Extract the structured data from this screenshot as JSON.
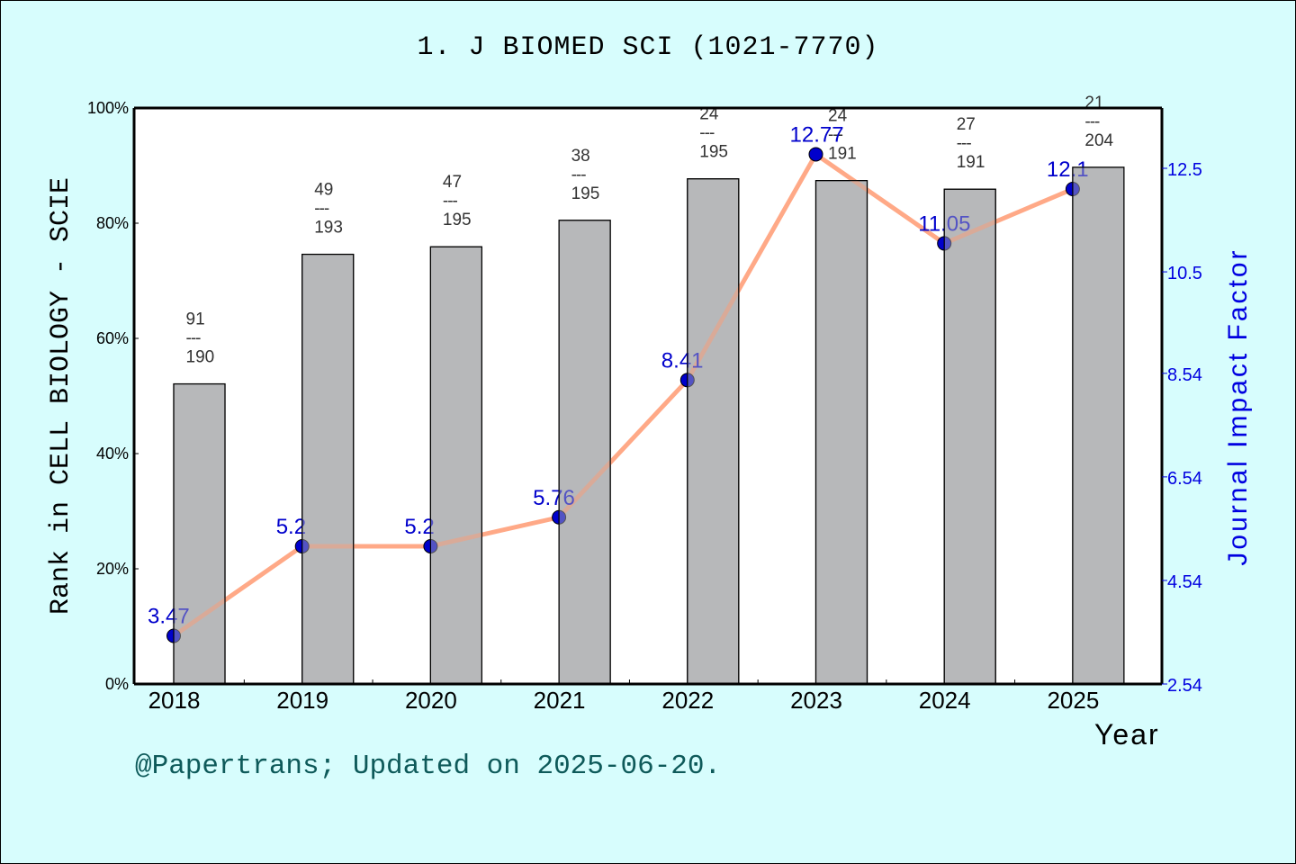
{
  "header": {
    "title": "1. J BIOMED SCI (1021-7770)"
  },
  "axes": {
    "left_title": "Rank in CELL BIOLOGY - SCIE",
    "right_title": "Journal Impact Factor",
    "x_title": "Year",
    "left_ticks": [
      "0%",
      "20%",
      "40%",
      "60%",
      "80%",
      "100%"
    ],
    "right_ticks": [
      "2.54",
      "4.54",
      "6.54",
      "8.54",
      "10.5",
      "12.5"
    ]
  },
  "footer": {
    "text": "@Papertrans; Updated on 2025-06-20."
  },
  "colors": {
    "background": "#d7fdfd",
    "plot_bg": "#ffffff",
    "bar_fill": "#b7b8ba",
    "line": "#ff9a72",
    "marker": "#0000cc",
    "if_label": "#0000cc",
    "rank_label": "#333333",
    "footer": "#0e5a5a"
  },
  "chart_data": {
    "type": "bar+line",
    "title": "1. J BIOMED SCI (1021-7770)",
    "xlabel": "Year",
    "ylabel": "Rank in CELL BIOLOGY - SCIE",
    "ylabel_right": "Journal Impact Factor",
    "categories": [
      "2018",
      "2019",
      "2020",
      "2021",
      "2022",
      "2023",
      "2024",
      "2025"
    ],
    "series": [
      {
        "name": "Rank percentile (bar)",
        "axis": "left",
        "type": "bar",
        "values": [
          52.1,
          74.6,
          75.9,
          80.5,
          87.7,
          87.4,
          85.9,
          89.7
        ],
        "rank": [
          91,
          49,
          47,
          38,
          24,
          24,
          27,
          21
        ],
        "total": [
          190,
          193,
          195,
          195,
          195,
          191,
          191,
          204
        ]
      },
      {
        "name": "Journal Impact Factor (line)",
        "axis": "right",
        "type": "line",
        "values": [
          3.47,
          5.2,
          5.2,
          5.76,
          8.41,
          12.77,
          11.05,
          12.1
        ],
        "labels": [
          "3.47",
          "5.2",
          "5.2",
          "5.76",
          "8.41",
          "12.77",
          "11.05",
          "12.1"
        ]
      }
    ],
    "ylim": [
      0,
      100
    ],
    "ylim_right": [
      2.54,
      13.5
    ],
    "yticks": [
      "0%",
      "20%",
      "40%",
      "60%",
      "80%",
      "100%"
    ],
    "yticks_right": [
      2.54,
      4.54,
      6.54,
      8.54,
      10.5,
      12.5
    ],
    "grid": false,
    "legend": "none"
  }
}
